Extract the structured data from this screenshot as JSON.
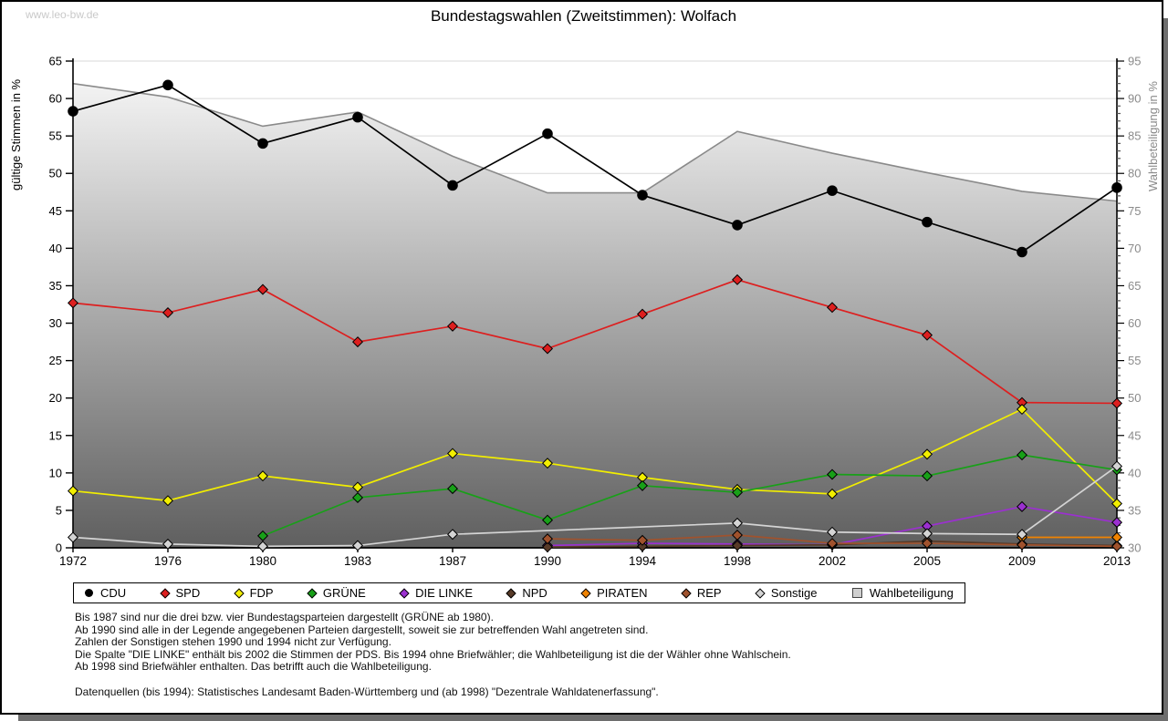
{
  "page": {
    "watermark": "www.leo-bw.de",
    "title": "Bundestagswahlen (Zweitstimmen): Wolfach"
  },
  "chart_data": {
    "type": "line",
    "title": "Bundestagswahlen (Zweitstimmen): Wolfach",
    "x_categories": [
      "1972",
      "1976",
      "1980",
      "1983",
      "1987",
      "1990",
      "1994",
      "1998",
      "2002",
      "2005",
      "2009",
      "2013"
    ],
    "y_left": {
      "label": "gültige Stimmen in %",
      "min": 0,
      "max": 65,
      "ticks": [
        0,
        5,
        10,
        15,
        20,
        25,
        30,
        35,
        40,
        45,
        50,
        55,
        60,
        65
      ]
    },
    "y_right": {
      "label": "Wahlbeteiligung in %",
      "min": 30,
      "max": 95,
      "ticks": [
        30,
        35,
        40,
        45,
        50,
        55,
        60,
        65,
        70,
        75,
        80,
        85,
        90,
        95
      ]
    },
    "grid": true,
    "legend_position": "bottom",
    "colors": {
      "grid": "#d9d9d9",
      "axis": "#000000",
      "right_axis_text": "#8a8a8a",
      "area_edge": "#8a8a8a",
      "area_top": "#fafafa",
      "area_bottom": "#5f5f5f"
    },
    "series": [
      {
        "name": "CDU",
        "color": "#000000",
        "marker": "circle",
        "axis": "left",
        "values": [
          58.3,
          61.8,
          54.0,
          57.5,
          48.4,
          55.3,
          47.1,
          43.1,
          47.7,
          43.5,
          39.5,
          48.1
        ]
      },
      {
        "name": "SPD",
        "color": "#dd1f1f",
        "marker": "diamond",
        "axis": "left",
        "values": [
          32.7,
          31.4,
          34.5,
          27.5,
          29.6,
          26.6,
          31.2,
          35.8,
          32.1,
          28.4,
          19.4,
          19.3
        ]
      },
      {
        "name": "FDP",
        "color": "#f2ee00",
        "marker": "diamond",
        "axis": "left",
        "values": [
          7.6,
          6.3,
          9.6,
          8.1,
          12.6,
          11.3,
          9.4,
          7.8,
          7.2,
          12.5,
          18.5,
          5.9
        ]
      },
      {
        "name": "GRÜNE",
        "color": "#18a018",
        "marker": "diamond",
        "axis": "left",
        "values": [
          null,
          null,
          1.6,
          6.7,
          7.9,
          3.7,
          8.3,
          7.4,
          9.8,
          9.6,
          12.4,
          10.4
        ]
      },
      {
        "name": "DIE LINKE",
        "color": "#9b30d0",
        "marker": "diamond",
        "axis": "left",
        "values": [
          null,
          null,
          null,
          null,
          null,
          0.3,
          0.6,
          0.5,
          0.4,
          2.9,
          5.5,
          3.4
        ]
      },
      {
        "name": "NPD",
        "color": "#573a28",
        "marker": "diamond",
        "axis": "left",
        "values": [
          null,
          null,
          null,
          null,
          null,
          0.1,
          0.2,
          0.3,
          0.4,
          0.9,
          0.5,
          0.3
        ]
      },
      {
        "name": "PIRATEN",
        "color": "#f08300",
        "marker": "diamond",
        "axis": "left",
        "values": [
          null,
          null,
          null,
          null,
          null,
          null,
          null,
          null,
          null,
          null,
          1.4,
          1.4
        ]
      },
      {
        "name": "REP",
        "color": "#a0522d",
        "marker": "diamond",
        "axis": "left",
        "values": [
          null,
          null,
          null,
          null,
          null,
          1.2,
          1.0,
          1.7,
          0.6,
          0.6,
          0.4,
          0.2
        ]
      },
      {
        "name": "Sonstige",
        "color": "#d4d4d4",
        "marker": "diamond",
        "axis": "left",
        "values": [
          1.4,
          0.5,
          0.2,
          0.3,
          1.8,
          null,
          null,
          3.3,
          2.1,
          1.9,
          1.8,
          10.9
        ]
      },
      {
        "name": "Wahlbeteiligung",
        "color": "#8a8a8a",
        "marker": "area",
        "axis": "right",
        "values": [
          92.0,
          90.2,
          86.3,
          88.2,
          82.3,
          77.4,
          77.4,
          85.6,
          82.7,
          80.1,
          77.6,
          76.3
        ]
      }
    ]
  },
  "footnotes": [
    "Bis 1987 sind nur die drei bzw. vier Bundestagsparteien dargestellt (GRÜNE ab 1980).",
    "Ab 1990 sind alle in der Legende angegebenen Parteien dargestellt, soweit sie zur betreffenden Wahl angetreten sind.",
    "Zahlen der Sonstigen stehen 1990 und 1994 nicht zur Verfügung.",
    "Die Spalte \"DIE LINKE\" enthält bis 2002 die Stimmen der PDS. Bis 1994 ohne Briefwähler; die Wahlbeteiligung ist die der Wähler ohne Wahlschein.",
    "Ab 1998 sind Briefwähler enthalten. Das betrifft auch die Wahlbeteiligung.",
    "",
    "Datenquellen (bis 1994): Statistisches Landesamt Baden-Württemberg und (ab 1998) \"Dezentrale Wahldatenerfassung\"."
  ]
}
